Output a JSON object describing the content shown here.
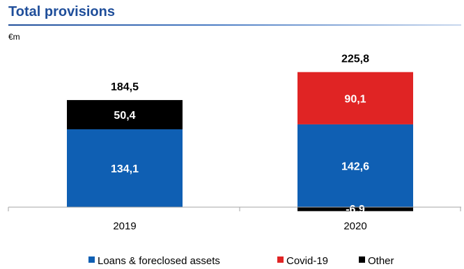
{
  "title": "Total provisions",
  "unit": "€m",
  "colors": {
    "title": "#1f4e9a",
    "loans": "#0f5fb3",
    "covid": "#e02424",
    "other": "#000000"
  },
  "chart_data": {
    "type": "bar",
    "stacked": true,
    "title": "Total provisions",
    "ylabel": "€m",
    "categories": [
      "2019",
      "2020"
    ],
    "series": [
      {
        "name": "Loans & foreclosed assets",
        "color": "#0f5fb3",
        "values": [
          134.1,
          142.6
        ],
        "labels": [
          "134,1",
          "142,6"
        ]
      },
      {
        "name": "Covid-19",
        "color": "#e02424",
        "values": [
          0,
          90.1
        ],
        "labels": [
          "",
          "90,1"
        ]
      },
      {
        "name": "Other",
        "color": "#000000",
        "values": [
          50.4,
          -6.9
        ],
        "labels": [
          "50,4",
          "-6,9"
        ]
      }
    ],
    "totals": [
      184.5,
      225.8
    ],
    "total_labels": [
      "184,5",
      "225,8"
    ],
    "grid": false,
    "legend_position": "bottom"
  }
}
